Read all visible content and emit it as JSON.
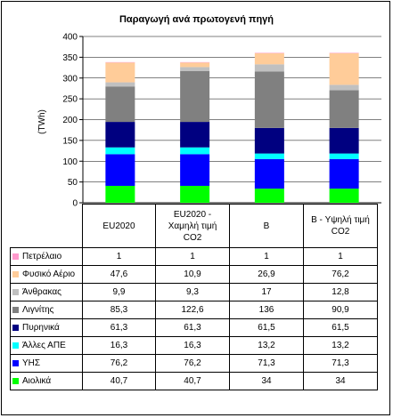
{
  "chart_data": {
    "type": "bar",
    "stacked": true,
    "title": "Παραγωγή ανά πρωτογενή πηγή",
    "ylabel": "(TWh)",
    "xlabel": "",
    "ylim": [
      0,
      400
    ],
    "yticks": [
      0,
      50,
      100,
      150,
      200,
      250,
      300,
      350,
      400
    ],
    "grid": true,
    "legend": "table",
    "categories": [
      "EU2020",
      "EU2020 - Χαμηλή τιμή CO2",
      "B",
      "B - Υψηλή τιμή CO2"
    ],
    "series": [
      {
        "name": "Πετρέλαιο",
        "color": "#ff99cc",
        "values": [
          1,
          1,
          1,
          1
        ]
      },
      {
        "name": "Φυσικό Αέριο",
        "color": "#ffcc99",
        "values": [
          47.6,
          10.9,
          26.9,
          76.2
        ]
      },
      {
        "name": "Άνθρακας",
        "color": "#c0c0c0",
        "values": [
          9.9,
          9.3,
          17,
          12.8
        ]
      },
      {
        "name": "Λιγνίτης",
        "color": "#808080",
        "values": [
          85.3,
          122.6,
          136,
          90.9
        ]
      },
      {
        "name": "Πυρηνικά",
        "color": "#000080",
        "values": [
          61.3,
          61.3,
          61.5,
          61.5
        ]
      },
      {
        "name": "Άλλες ΑΠΕ",
        "color": "#00ffff",
        "values": [
          16.3,
          16.3,
          13.2,
          13.2
        ]
      },
      {
        "name": "ΥΗΣ",
        "color": "#0000ff",
        "values": [
          76.2,
          76.2,
          71.3,
          71.3
        ]
      },
      {
        "name": "Αιολικά",
        "color": "#00ff00",
        "values": [
          40.7,
          40.7,
          34,
          34
        ]
      }
    ],
    "table_values": [
      [
        "1",
        "1",
        "1",
        "1"
      ],
      [
        "47,6",
        "10,9",
        "26,9",
        "76,2"
      ],
      [
        "9,9",
        "9,3",
        "17",
        "12,8"
      ],
      [
        "85,3",
        "122,6",
        "136",
        "90,9"
      ],
      [
        "61,3",
        "61,3",
        "61,5",
        "61,5"
      ],
      [
        "16,3",
        "16,3",
        "13,2",
        "13,2"
      ],
      [
        "76,2",
        "76,2",
        "71,3",
        "71,3"
      ],
      [
        "40,7",
        "40,7",
        "34",
        "34"
      ]
    ],
    "category_lines": [
      [
        "EU2020"
      ],
      [
        "EU2020 -",
        "Χαμηλή τιμή",
        "CO2"
      ],
      [
        "B"
      ],
      [
        "B - Υψηλή τιμή",
        "CO2"
      ]
    ]
  }
}
